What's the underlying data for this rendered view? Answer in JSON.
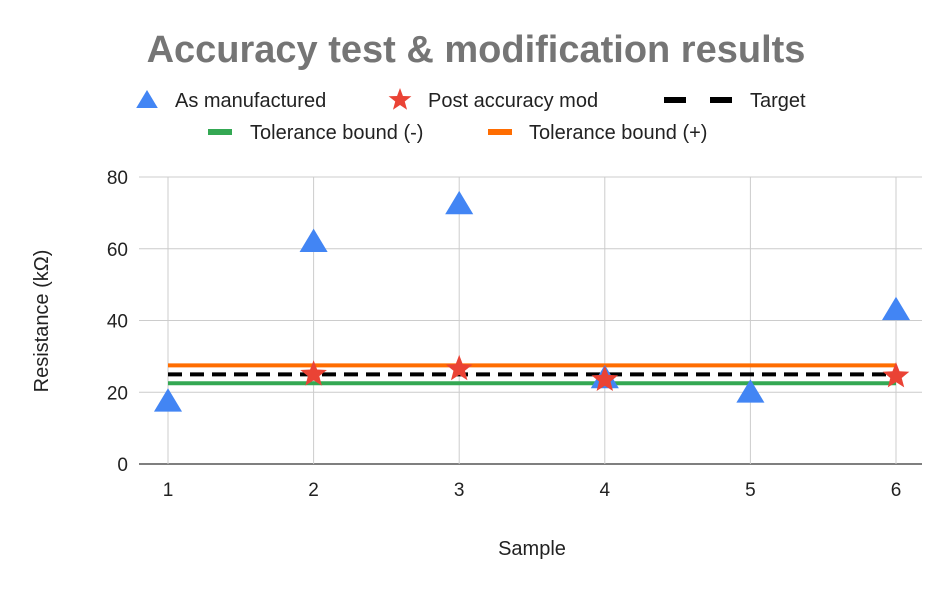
{
  "chart_data": {
    "type": "scatter",
    "title": "Accuracy test & modification results",
    "xlabel": "Sample",
    "ylabel": "Resistance (kΩ)",
    "xlim": [
      1,
      6
    ],
    "ylim": [
      0,
      80
    ],
    "x_ticks": [
      "1",
      "2",
      "3",
      "4",
      "5",
      "6"
    ],
    "y_ticks": [
      "0",
      "20",
      "40",
      "60",
      "80"
    ],
    "grid": true,
    "legend_position": "top",
    "series": [
      {
        "name": "As manufactured",
        "marker": "triangle",
        "color": "#4285F4",
        "x": [
          1,
          2,
          3,
          4,
          5,
          6
        ],
        "y": [
          17.5,
          62,
          72.5,
          24,
          20,
          43
        ]
      },
      {
        "name": "Post accuracy mod",
        "marker": "star",
        "color": "#EA4335",
        "x": [
          2,
          3,
          4,
          6
        ],
        "y": [
          25,
          26.5,
          23.5,
          24.5
        ]
      },
      {
        "name": "Target",
        "style": "dashed-line",
        "color": "#000000",
        "x": [
          1,
          6
        ],
        "y": [
          25,
          25
        ]
      },
      {
        "name": "Tolerance bound (-)",
        "style": "line",
        "color": "#34A853",
        "x": [
          1,
          6
        ],
        "y": [
          22.5,
          22.5
        ]
      },
      {
        "name": "Tolerance bound (+)",
        "style": "line",
        "color": "#FF6D01",
        "x": [
          1,
          6
        ],
        "y": [
          27.5,
          27.5
        ]
      }
    ]
  }
}
